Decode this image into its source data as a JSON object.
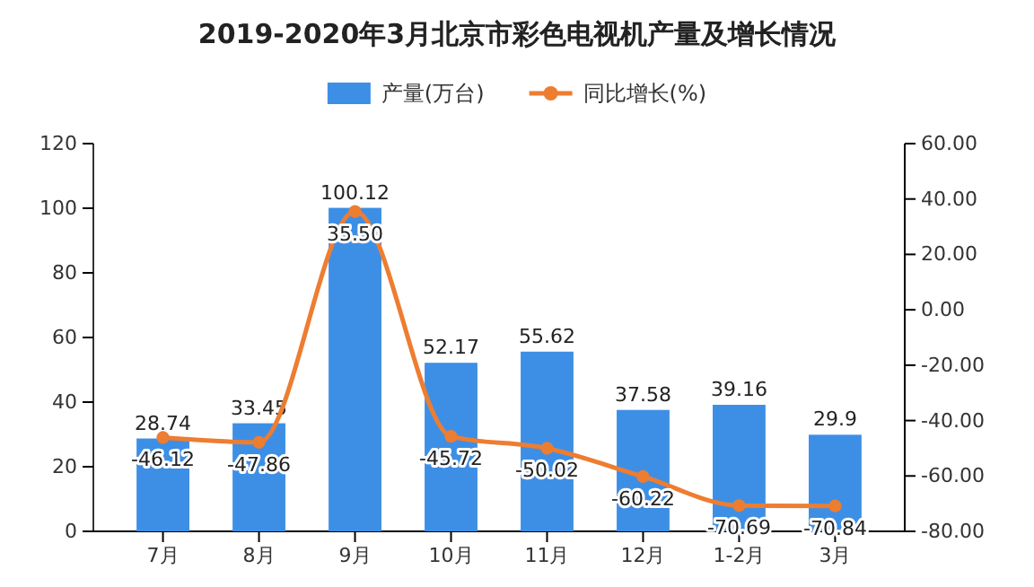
{
  "chart_data": {
    "type": "bar",
    "title": "2019-2020年3月北京市彩色电视机产量及增长情况",
    "categories": [
      "7月",
      "8月",
      "9月",
      "10月",
      "11月",
      "12月",
      "1-2月",
      "3月"
    ],
    "series": [
      {
        "name": "产量(万台)",
        "color": "#3d8fe6",
        "values": [
          28.74,
          33.45,
          100.12,
          52.17,
          55.62,
          37.58,
          39.16,
          29.9
        ],
        "value_labels": [
          "28.74",
          "33.45",
          "100.12",
          "52.17",
          "55.62",
          "37.58",
          "39.16",
          "29.9"
        ]
      },
      {
        "name": "同比增长(%)",
        "type": "line",
        "axis": "y2",
        "color": "#ed7d31",
        "values": [
          -46.12,
          -47.86,
          35.5,
          -45.72,
          -50.02,
          -60.22,
          -70.69,
          -70.84
        ],
        "value_labels": [
          "-46.12",
          "-47.86",
          "35.50",
          "-45.72",
          "-50.02",
          "-60.22",
          "-70.69",
          "-70.84"
        ]
      }
    ],
    "ylim": [
      0,
      120
    ],
    "yticks": [
      0,
      20,
      40,
      60,
      80,
      100,
      120
    ],
    "y2lim": [
      -80,
      60
    ],
    "y2ticks": [
      {
        "value": -80,
        "label": "-80.00"
      },
      {
        "value": -60,
        "label": "-60.00"
      },
      {
        "value": -40,
        "label": "-40.00"
      },
      {
        "value": -20,
        "label": "-20.00"
      },
      {
        "value": 0,
        "label": "0.00"
      },
      {
        "value": 20,
        "label": "20.00"
      },
      {
        "value": 40,
        "label": "40.00"
      },
      {
        "value": 60,
        "label": "60.00"
      }
    ],
    "legend": "top",
    "marker": "circle",
    "grid": false
  }
}
